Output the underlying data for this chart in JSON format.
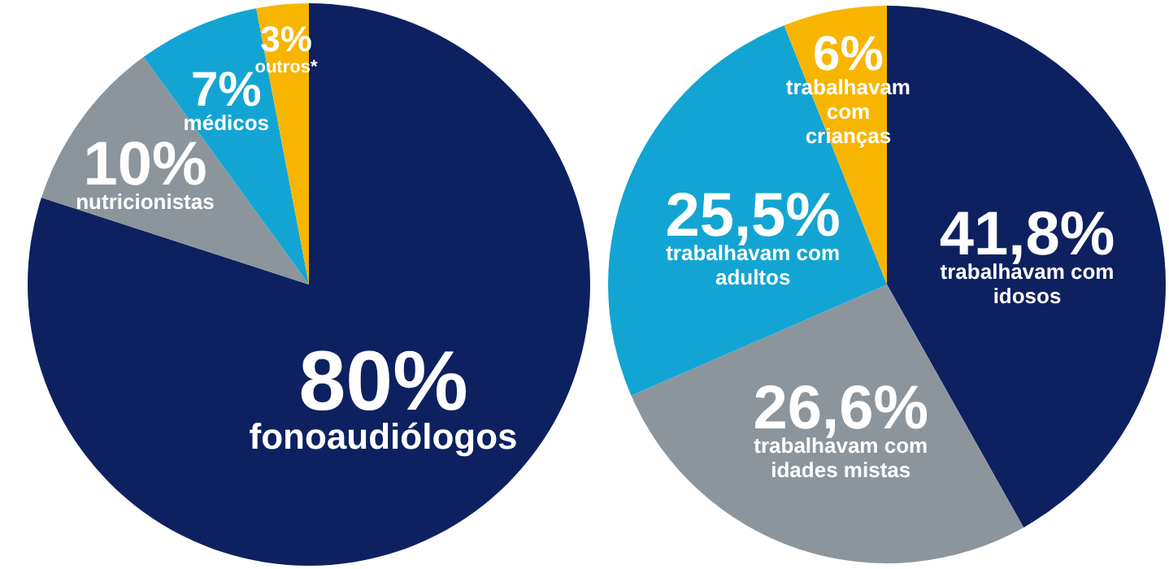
{
  "chart_data": [
    {
      "type": "pie",
      "categories": [
        "fonoaudiólogos",
        "nutricionistas",
        "médicos",
        "outros*"
      ],
      "values": [
        80,
        10,
        7,
        3
      ],
      "value_labels": [
        "80%",
        "10%",
        "7%",
        "3%"
      ],
      "colors": [
        "#0d2160",
        "#8c959c",
        "#12a5d3",
        "#f8b500"
      ],
      "legend": false
    },
    {
      "type": "pie",
      "categories": [
        "trabalhavam com idosos",
        "trabalhavam com idades mistas",
        "trabalhavam com adultos",
        "trabalhavam com crianças"
      ],
      "values": [
        41.8,
        26.6,
        25.5,
        6
      ],
      "value_labels": [
        "41,8%",
        "26,6%",
        "25,5%",
        "6%"
      ],
      "colors": [
        "#0d2160",
        "#8c959c",
        "#12a5d3",
        "#f8b500"
      ],
      "legend": false
    }
  ]
}
